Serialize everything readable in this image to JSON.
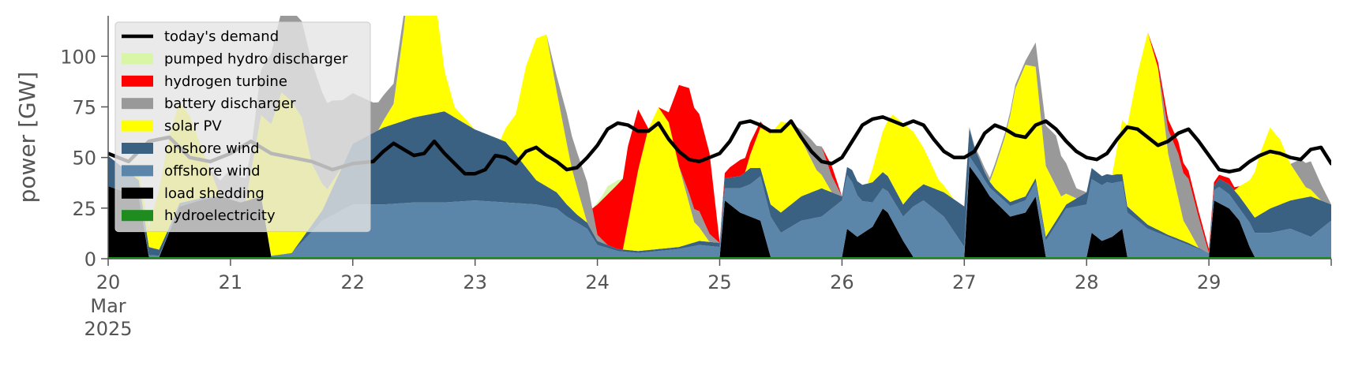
{
  "chart_data": {
    "type": "area",
    "stacked": true,
    "title": "",
    "xlabel": "",
    "ylabel": "power [GW]",
    "ylim": [
      0,
      120
    ],
    "yticks": [
      0,
      25,
      50,
      75,
      100
    ],
    "xlim": [
      0,
      240
    ],
    "x_unit": "hours from 2025-03-20 00:00",
    "x_ticks": [
      {
        "x": 0,
        "label": "20",
        "sublabel": "Mar",
        "subsublabel": "2025"
      },
      {
        "x": 24,
        "label": "21"
      },
      {
        "x": 48,
        "label": "22"
      },
      {
        "x": 72,
        "label": "23"
      },
      {
        "x": 96,
        "label": "24"
      },
      {
        "x": 120,
        "label": "25"
      },
      {
        "x": 144,
        "label": "26"
      },
      {
        "x": 168,
        "label": "27"
      },
      {
        "x": 192,
        "label": "28"
      },
      {
        "x": 216,
        "label": "29"
      }
    ],
    "grid": false,
    "legend_position": "top-left",
    "legend": [
      {
        "name": "today's demand",
        "kind": "line",
        "color": "#000000"
      },
      {
        "name": "pumped hydro discharger",
        "kind": "patch",
        "color": "#d9f5a6"
      },
      {
        "name": "hydrogen turbine",
        "kind": "patch",
        "color": "#ff0000"
      },
      {
        "name": "battery discharger",
        "kind": "patch",
        "color": "#999999"
      },
      {
        "name": "solar PV",
        "kind": "patch",
        "color": "#ffff00"
      },
      {
        "name": "onshore wind",
        "kind": "patch",
        "color": "#3b6182"
      },
      {
        "name": "offshore wind",
        "kind": "patch",
        "color": "#5c85aa"
      },
      {
        "name": "load shedding",
        "kind": "patch",
        "color": "#000000"
      },
      {
        "name": "hydroelectricity",
        "kind": "patch",
        "color": "#1e8c1e"
      }
    ],
    "stack_order_bottom_to_top": [
      "hydroelectricity",
      "load shedding",
      "offshore wind",
      "onshore wind",
      "solar PV",
      "battery discharger",
      "hydrogen turbine",
      "pumped hydro discharger"
    ],
    "series": [
      {
        "name": "hydroelectricity",
        "color": "#1e8c1e",
        "x": [
          0,
          240
        ],
        "values": [
          0.8,
          0.8
        ]
      },
      {
        "name": "load shedding",
        "color": "#000000",
        "x": [
          0,
          6,
          8,
          10,
          14,
          18,
          22,
          26,
          30,
          32,
          34,
          36,
          120,
          121,
          124,
          128,
          130,
          132,
          144,
          145,
          147,
          150,
          152,
          153,
          156,
          158,
          160,
          168,
          169,
          171,
          173,
          175,
          177,
          180,
          182,
          184,
          186,
          192,
          193,
          195,
          197,
          199,
          200,
          216,
          217,
          220,
          222,
          224,
          225,
          240
        ],
        "values": [
          35,
          30,
          0,
          0,
          25,
          28,
          30,
          27,
          30,
          0,
          0,
          0,
          0,
          28,
          22,
          18,
          0,
          0,
          0,
          14,
          10,
          15,
          24,
          22,
          8,
          0,
          0,
          0,
          45,
          38,
          30,
          25,
          20,
          22,
          30,
          0,
          0,
          0,
          12,
          8,
          10,
          14,
          0,
          0,
          28,
          24,
          18,
          5,
          0,
          0
        ]
      },
      {
        "name": "offshore wind",
        "color": "#5c85aa",
        "x": [
          0,
          6,
          8,
          14,
          18,
          24,
          26,
          30,
          36,
          42,
          48,
          54,
          60,
          66,
          72,
          78,
          84,
          88,
          90,
          94,
          96,
          100,
          104,
          108,
          112,
          116,
          120,
          121,
          124,
          126,
          128,
          130,
          132,
          136,
          140,
          144,
          146,
          148,
          150,
          152,
          156,
          158,
          160,
          164,
          168,
          172,
          176,
          180,
          184,
          188,
          192,
          196,
          200,
          204,
          208,
          212,
          216,
          218,
          222,
          224,
          228,
          232,
          236,
          240
        ],
        "values": [
          0,
          0,
          1,
          0,
          0,
          0,
          0,
          0,
          2,
          18,
          26,
          26,
          27,
          27,
          28,
          27,
          26,
          24,
          20,
          14,
          6,
          3,
          2,
          3,
          4,
          6,
          5,
          6,
          12,
          16,
          22,
          20,
          12,
          18,
          20,
          28,
          25,
          16,
          12,
          10,
          12,
          25,
          28,
          20,
          5,
          4,
          5,
          6,
          8,
          24,
          26,
          28,
          22,
          14,
          10,
          6,
          2,
          8,
          6,
          12,
          12,
          14,
          10,
          18
        ]
      },
      {
        "name": "onshore wind",
        "color": "#3b6182",
        "x": [
          0,
          6,
          8,
          12,
          18,
          24,
          30,
          36,
          42,
          48,
          54,
          60,
          66,
          72,
          78,
          84,
          88,
          92,
          96,
          100,
          104,
          108,
          112,
          116,
          120,
          121,
          124,
          126,
          128,
          130,
          132,
          136,
          140,
          144,
          146,
          148,
          150,
          152,
          156,
          160,
          164,
          168,
          170,
          172,
          174,
          176,
          180,
          184,
          188,
          192,
          196,
          198,
          200,
          204,
          208,
          212,
          216,
          218,
          222,
          224,
          228,
          232,
          236,
          240
        ],
        "values": [
          15,
          8,
          4,
          2,
          1,
          0,
          0,
          0,
          5,
          30,
          38,
          42,
          45,
          35,
          30,
          12,
          8,
          4,
          2,
          1,
          1,
          1,
          1,
          2,
          2,
          5,
          6,
          8,
          4,
          6,
          10,
          12,
          14,
          2,
          6,
          8,
          10,
          8,
          6,
          8,
          12,
          20,
          8,
          4,
          2,
          2,
          2,
          2,
          2,
          6,
          4,
          4,
          3,
          2,
          1,
          1,
          0,
          4,
          6,
          6,
          12,
          14,
          20,
          8
        ]
      },
      {
        "name": "solar PV",
        "color": "#ffff00",
        "x": [
          0,
          5,
          8,
          10,
          12,
          14,
          16,
          19,
          22,
          27,
          30,
          32,
          34,
          36,
          38,
          40,
          43,
          46,
          48,
          53,
          56,
          58,
          60,
          62,
          64,
          66,
          68,
          72,
          77,
          80,
          82,
          84,
          86,
          88,
          91,
          94,
          96,
          101,
          104,
          106,
          108,
          110,
          112,
          115,
          118,
          120,
          125,
          128,
          130,
          132,
          134,
          136,
          139,
          142,
          144,
          149,
          152,
          154,
          156,
          158,
          160,
          163,
          166,
          168,
          173,
          176,
          178,
          180,
          182,
          184,
          187,
          190,
          192,
          197,
          200,
          202,
          204,
          206,
          208,
          211,
          214,
          216,
          221,
          224,
          226,
          228,
          230,
          232,
          235,
          238,
          240
        ],
        "values": [
          0,
          0,
          10,
          30,
          45,
          50,
          42,
          20,
          0,
          0,
          40,
          65,
          80,
          75,
          60,
          30,
          5,
          0,
          0,
          0,
          10,
          45,
          90,
          100,
          60,
          20,
          5,
          0,
          0,
          20,
          50,
          70,
          75,
          50,
          20,
          0,
          0,
          0,
          40,
          60,
          70,
          62,
          40,
          10,
          0,
          0,
          0,
          20,
          35,
          45,
          40,
          28,
          10,
          0,
          0,
          0,
          20,
          35,
          40,
          30,
          18,
          5,
          0,
          0,
          0,
          30,
          55,
          65,
          55,
          35,
          8,
          0,
          0,
          0,
          40,
          70,
          95,
          80,
          40,
          10,
          0,
          0,
          0,
          15,
          30,
          40,
          32,
          18,
          5,
          0,
          0
        ]
      },
      {
        "name": "battery discharger",
        "color": "#999999",
        "x": [
          0,
          20,
          24,
          28,
          32,
          36,
          40,
          44,
          48,
          52,
          56,
          60,
          64,
          68,
          76,
          86,
          90,
          94,
          96,
          98,
          100,
          112,
          114,
          116,
          118,
          120,
          134,
          138,
          140,
          142,
          144,
          168,
          172,
          180,
          182,
          184,
          186,
          188,
          190,
          192,
          206,
          208,
          210,
          212,
          214,
          216,
          232,
          234,
          236,
          238,
          240
        ],
        "values": [
          0,
          0,
          15,
          10,
          35,
          45,
          50,
          40,
          25,
          15,
          10,
          5,
          0,
          0,
          0,
          0,
          15,
          20,
          3,
          0,
          0,
          0,
          5,
          8,
          4,
          0,
          0,
          10,
          14,
          8,
          0,
          0,
          2,
          2,
          12,
          20,
          25,
          15,
          5,
          0,
          0,
          12,
          22,
          25,
          15,
          0,
          0,
          10,
          14,
          8,
          0
        ]
      },
      {
        "name": "hydrogen turbine",
        "color": "#ff0000",
        "x": [
          0,
          95,
          96,
          98,
          100,
          102,
          104,
          106,
          108,
          110,
          112,
          114,
          116,
          118,
          120,
          122,
          124,
          126,
          128,
          130,
          140,
          142,
          144,
          204,
          206,
          208,
          210,
          212,
          214,
          216,
          218,
          220,
          222,
          240
        ],
        "values": [
          0,
          0,
          15,
          25,
          32,
          38,
          30,
          0,
          0,
          5,
          40,
          52,
          48,
          40,
          0,
          5,
          8,
          6,
          3,
          0,
          0,
          5,
          0,
          0,
          3,
          5,
          6,
          4,
          3,
          2,
          2,
          3,
          0,
          0
        ]
      },
      {
        "name": "pumped hydro discharger",
        "color": "#d9f5a6",
        "x": [
          0,
          95,
          97,
          98,
          99,
          100,
          101,
          240
        ],
        "values": [
          0,
          0,
          2,
          4,
          3,
          2,
          0,
          0
        ]
      },
      {
        "name": "today's demand",
        "kind": "line",
        "color": "#000000",
        "x": [
          0,
          4,
          8,
          12,
          16,
          20,
          24,
          28,
          32,
          36,
          40,
          44,
          48,
          52,
          54,
          56,
          58,
          60,
          62,
          64,
          66,
          68,
          70,
          72,
          74,
          76,
          78,
          80,
          82,
          84,
          86,
          88,
          90,
          92,
          94,
          96,
          98,
          100,
          102,
          104,
          106,
          108,
          110,
          112,
          114,
          116,
          118,
          120,
          122,
          124,
          126,
          128,
          130,
          132,
          134,
          136,
          138,
          140,
          142,
          144,
          146,
          148,
          150,
          152,
          154,
          156,
          158,
          160,
          162,
          164,
          166,
          168,
          170,
          172,
          174,
          176,
          178,
          180,
          182,
          184,
          186,
          188,
          190,
          192,
          194,
          196,
          198,
          200,
          202,
          204,
          206,
          208,
          210,
          212,
          214,
          216,
          218,
          220,
          222,
          224,
          226,
          228,
          230,
          232,
          234,
          236,
          238,
          240
        ],
        "values": [
          52,
          48,
          58,
          60,
          50,
          48,
          52,
          58,
          52,
          50,
          48,
          44,
          47,
          48,
          53,
          57,
          54,
          51,
          52,
          58,
          52,
          47,
          42,
          42,
          44,
          51,
          50,
          47,
          53,
          55,
          51,
          48,
          44,
          45,
          50,
          56,
          64,
          67,
          66,
          63,
          63,
          67,
          59,
          53,
          49,
          48,
          50,
          52,
          58,
          67,
          68,
          66,
          63,
          63,
          68,
          60,
          53,
          48,
          47,
          50,
          58,
          66,
          69,
          70,
          68,
          66,
          68,
          66,
          59,
          53,
          50,
          50,
          53,
          62,
          66,
          64,
          61,
          60,
          66,
          68,
          64,
          58,
          53,
          50,
          49,
          52,
          59,
          65,
          64,
          60,
          56,
          58,
          62,
          64,
          58,
          51,
          44,
          43,
          44,
          48,
          51,
          53,
          52,
          50,
          49,
          54,
          55,
          47
        ]
      }
    ]
  }
}
